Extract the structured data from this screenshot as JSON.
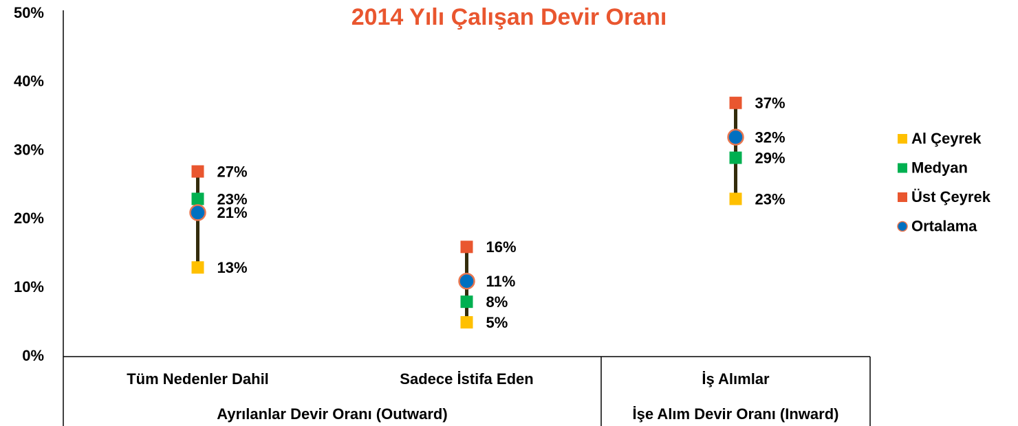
{
  "chart_data": {
    "type": "hilo",
    "title": "2014 Yılı Çalışan Devir Oranı",
    "categories": [
      "Tüm Nedenler Dahil",
      "Sadece İstifa Eden",
      "İş Alımlar"
    ],
    "groups": [
      {
        "label": "Ayrılanlar Devir Oranı (Outward)",
        "span": 2
      },
      {
        "label": "İşe Alım Devir Oranı (Inward)",
        "span": 1
      }
    ],
    "series": [
      {
        "name": "Al Çeyrek",
        "color": "#ffc000",
        "marker": "square",
        "values": [
          13,
          5,
          23
        ],
        "value_labels": [
          "13%",
          "5%",
          "23%"
        ]
      },
      {
        "name": "Medyan",
        "color": "#00b050",
        "marker": "square",
        "values": [
          23,
          8,
          29
        ],
        "value_labels": [
          "23%",
          "8%",
          "29%"
        ]
      },
      {
        "name": "Üst Çeyrek",
        "color": "#e9562f",
        "marker": "square",
        "values": [
          27,
          16,
          37
        ],
        "value_labels": [
          "27%",
          "16%",
          "37%"
        ]
      },
      {
        "name": "Ortalama",
        "color": "#0070c0",
        "marker": "circle",
        "values": [
          21,
          11,
          32
        ],
        "value_labels": [
          "21%",
          "11%",
          "32%"
        ]
      }
    ],
    "ylim": [
      0,
      50
    ],
    "yticks": [
      {
        "value": 0,
        "label": "0%"
      },
      {
        "value": 10,
        "label": "10%"
      },
      {
        "value": 20,
        "label": "20%"
      },
      {
        "value": 30,
        "label": "30%"
      },
      {
        "value": 40,
        "label": "40%"
      },
      {
        "value": 50,
        "label": "50%"
      }
    ],
    "grid": false,
    "legend": "right"
  }
}
